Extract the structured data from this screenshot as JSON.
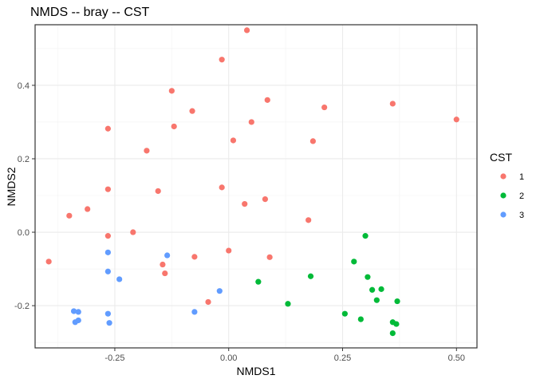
{
  "chart_data": {
    "type": "scatter",
    "title": "NMDS -- bray -- CST",
    "xlabel": "NMDS1",
    "ylabel": "NMDS2",
    "xlim": [
      -0.425,
      0.545
    ],
    "ylim": [
      -0.315,
      0.565
    ],
    "x_ticks": [
      -0.25,
      0.0,
      0.25,
      0.5
    ],
    "x_tick_labels": [
      "-0.25",
      "0.00",
      "0.25",
      "0.50"
    ],
    "y_ticks": [
      -0.2,
      0.0,
      0.2,
      0.4
    ],
    "y_tick_labels": [
      "-0.2",
      "0.0",
      "0.2",
      "0.4"
    ],
    "grid": true,
    "legend": {
      "title": "CST",
      "position": "right"
    },
    "series": [
      {
        "name": "1",
        "color": "#F8766D",
        "points": [
          [
            0.04,
            0.55
          ],
          [
            -0.015,
            0.47
          ],
          [
            -0.125,
            0.385
          ],
          [
            0.085,
            0.36
          ],
          [
            -0.08,
            0.33
          ],
          [
            0.21,
            0.34
          ],
          [
            0.36,
            0.35
          ],
          [
            0.5,
            0.307
          ],
          [
            -0.265,
            0.282
          ],
          [
            -0.12,
            0.288
          ],
          [
            0.05,
            0.3
          ],
          [
            0.01,
            0.25
          ],
          [
            0.185,
            0.248
          ],
          [
            -0.18,
            0.222
          ],
          [
            -0.265,
            0.117
          ],
          [
            -0.155,
            0.112
          ],
          [
            -0.015,
            0.122
          ],
          [
            0.08,
            0.09
          ],
          [
            0.035,
            0.077
          ],
          [
            -0.35,
            0.045
          ],
          [
            -0.31,
            0.063
          ],
          [
            0.175,
            0.033
          ],
          [
            -0.265,
            -0.01
          ],
          [
            -0.21,
            0.0
          ],
          [
            -0.395,
            -0.08
          ],
          [
            -0.145,
            -0.088
          ],
          [
            -0.14,
            -0.112
          ],
          [
            -0.075,
            -0.067
          ],
          [
            0.0,
            -0.05
          ],
          [
            0.09,
            -0.068
          ],
          [
            -0.045,
            -0.19
          ]
        ]
      },
      {
        "name": "2",
        "color": "#00BA38",
        "points": [
          [
            0.3,
            -0.01
          ],
          [
            0.275,
            -0.08
          ],
          [
            0.065,
            -0.135
          ],
          [
            0.18,
            -0.12
          ],
          [
            0.305,
            -0.122
          ],
          [
            0.315,
            -0.157
          ],
          [
            0.335,
            -0.155
          ],
          [
            0.325,
            -0.185
          ],
          [
            0.37,
            -0.188
          ],
          [
            0.13,
            -0.195
          ],
          [
            0.255,
            -0.222
          ],
          [
            0.29,
            -0.237
          ],
          [
            0.36,
            -0.245
          ],
          [
            0.368,
            -0.25
          ],
          [
            0.36,
            -0.275
          ]
        ]
      },
      {
        "name": "3",
        "color": "#619CFF",
        "points": [
          [
            -0.265,
            -0.055
          ],
          [
            -0.135,
            -0.063
          ],
          [
            -0.265,
            -0.107
          ],
          [
            -0.24,
            -0.128
          ],
          [
            -0.02,
            -0.16
          ],
          [
            -0.075,
            -0.217
          ],
          [
            -0.34,
            -0.215
          ],
          [
            -0.33,
            -0.217
          ],
          [
            -0.265,
            -0.222
          ],
          [
            -0.33,
            -0.24
          ],
          [
            -0.337,
            -0.245
          ],
          [
            -0.262,
            -0.247
          ]
        ]
      }
    ]
  }
}
